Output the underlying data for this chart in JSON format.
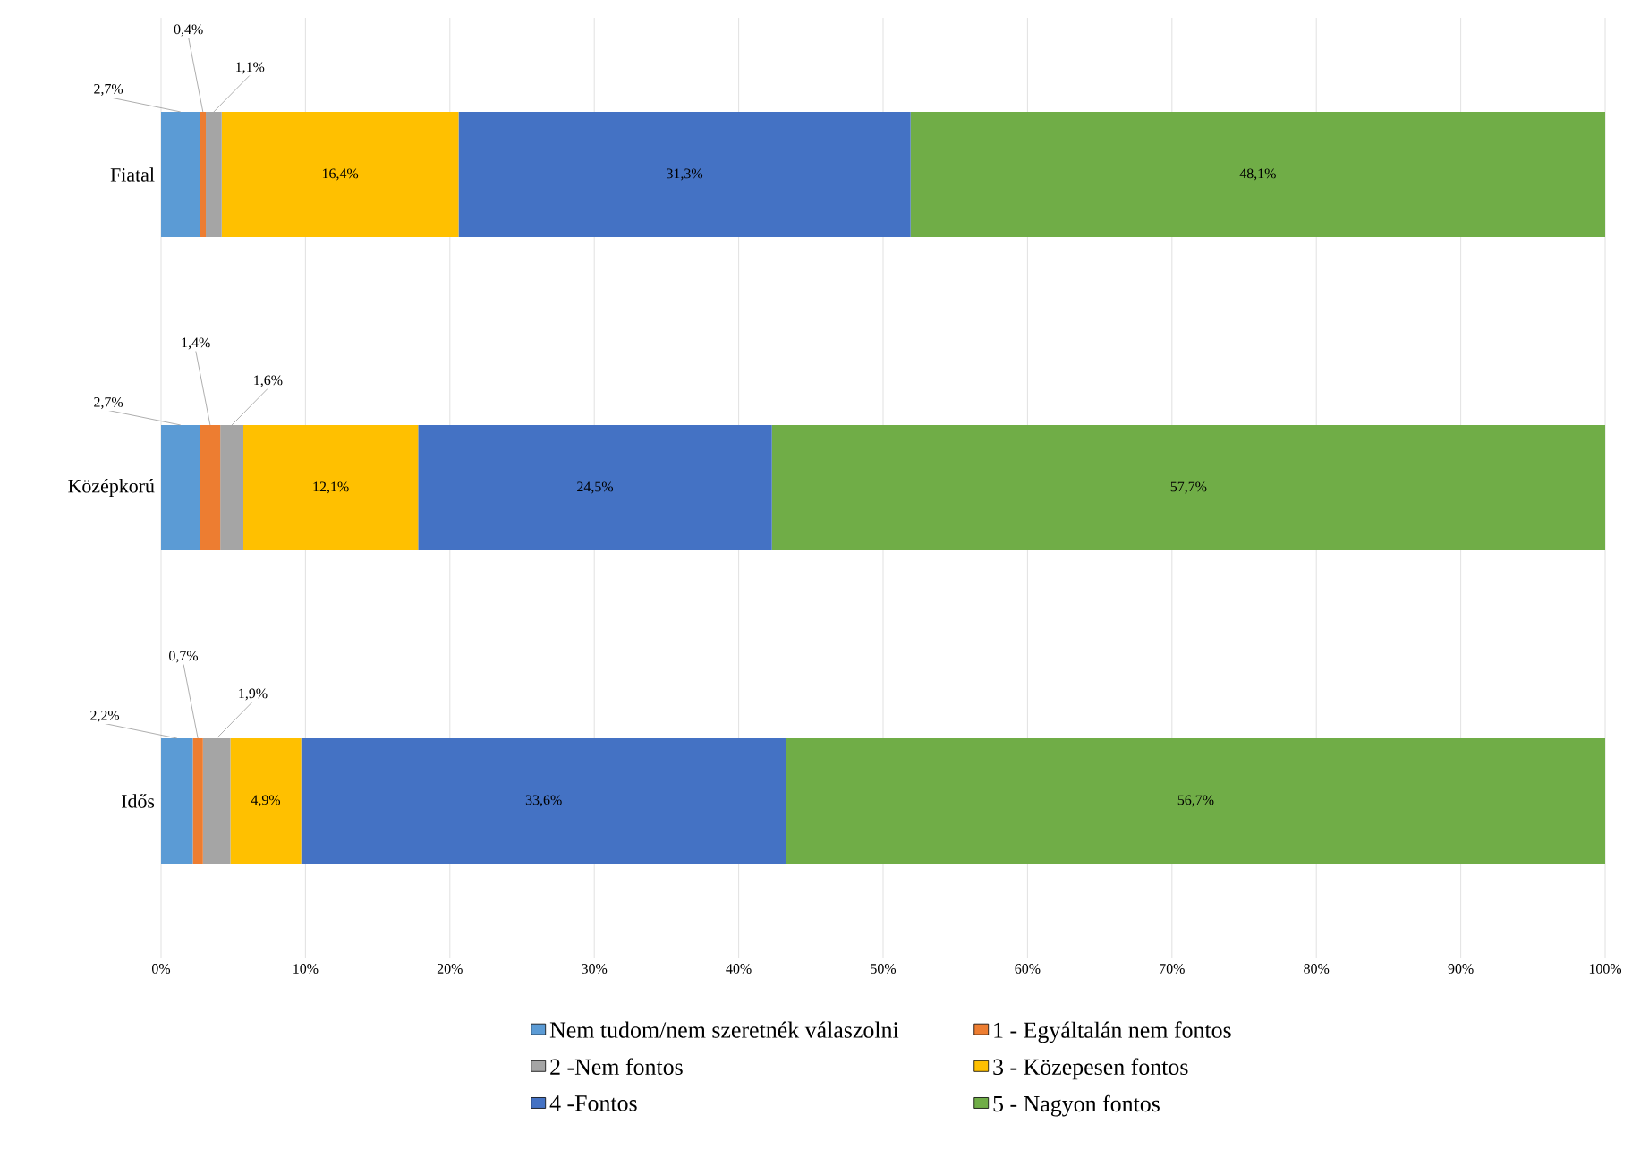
{
  "chart_data": {
    "type": "bar",
    "orientation": "horizontal",
    "stacked": true,
    "categories": [
      "Fiatal",
      "Középkorú",
      "Idős"
    ],
    "series": [
      {
        "name": "Nem tudom/nem szeretnék válaszolni",
        "color": "#5b9bd5",
        "values": [
          2.7,
          2.7,
          2.2
        ],
        "value_labels": [
          "2,7%",
          "2,7%",
          "2,2%"
        ]
      },
      {
        "name": "1 - Egyáltalán nem fontos",
        "color": "#ed7d31",
        "values": [
          0.4,
          1.4,
          0.7
        ],
        "value_labels": [
          "0,4%",
          "1,4%",
          "0,7%"
        ]
      },
      {
        "name": "2 -Nem fontos",
        "color": "#a5a5a5",
        "values": [
          1.1,
          1.6,
          1.9
        ],
        "value_labels": [
          "1,1%",
          "1,6%",
          "1,9%"
        ]
      },
      {
        "name": "3 - Közepesen fontos",
        "color": "#ffc000",
        "values": [
          16.4,
          12.1,
          4.9
        ],
        "value_labels": [
          "16,4%",
          "12,1%",
          "4,9%"
        ]
      },
      {
        "name": "4 -Fontos",
        "color": "#4472c4",
        "values": [
          31.3,
          24.5,
          33.6
        ],
        "value_labels": [
          "31,3%",
          "24,5%",
          "33,6%"
        ]
      },
      {
        "name": "5 - Nagyon fontos",
        "color": "#70ad47",
        "values": [
          48.1,
          57.7,
          56.7
        ],
        "value_labels": [
          "48,1%",
          "57,7%",
          "56,7%"
        ]
      }
    ],
    "xlim": [
      0,
      100
    ],
    "xticks": [
      {
        "value": 0,
        "label": "0%"
      },
      {
        "value": 10,
        "label": "10%"
      },
      {
        "value": 20,
        "label": "20%"
      },
      {
        "value": 30,
        "label": "30%"
      },
      {
        "value": 40,
        "label": "40%"
      },
      {
        "value": 50,
        "label": "50%"
      },
      {
        "value": 60,
        "label": "60%"
      },
      {
        "value": 70,
        "label": "70%"
      },
      {
        "value": 80,
        "label": "80%"
      },
      {
        "value": 90,
        "label": "90%"
      },
      {
        "value": 100,
        "label": "100%"
      }
    ],
    "grid": "x",
    "legend": "bottom"
  }
}
